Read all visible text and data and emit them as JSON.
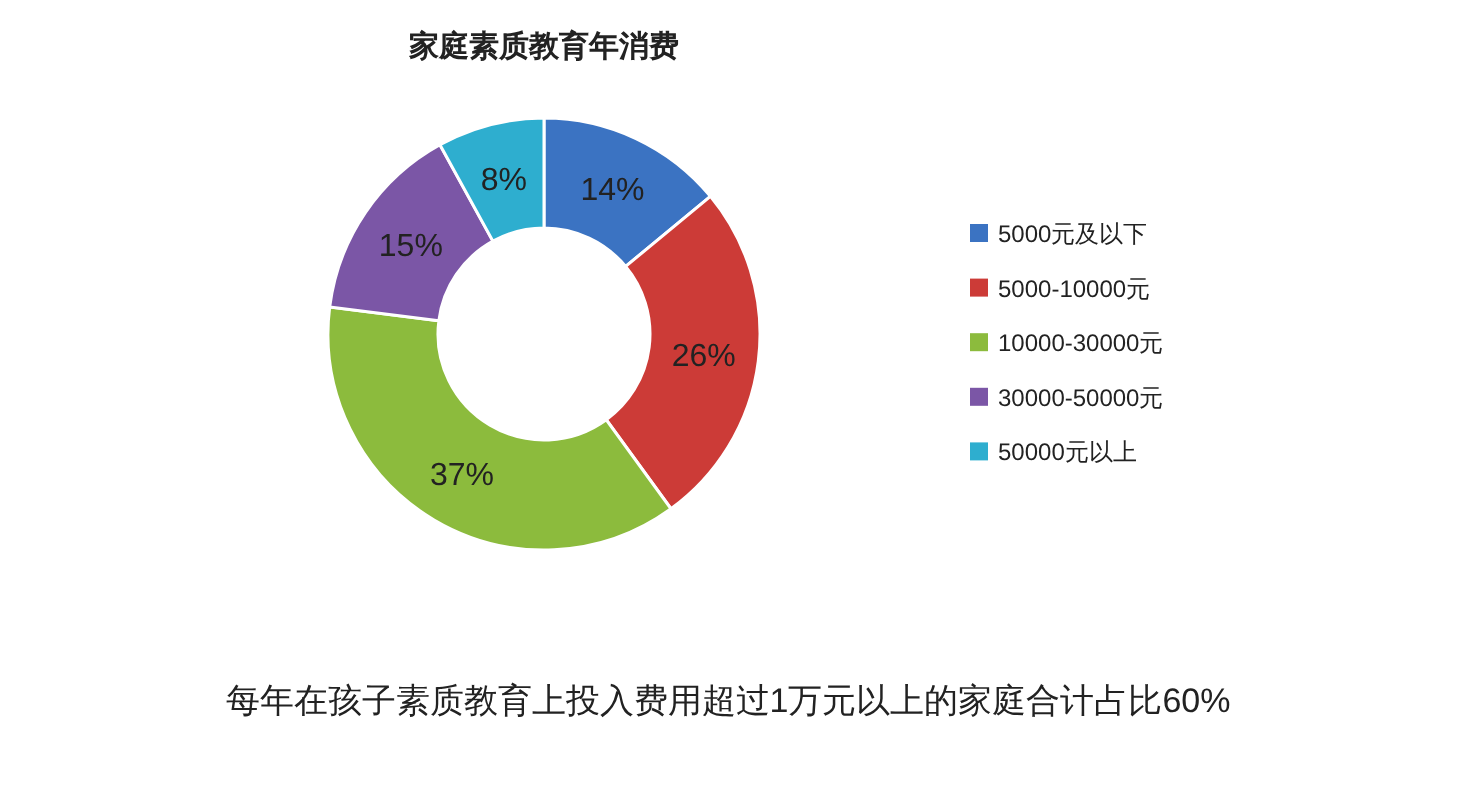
{
  "chart_data": {
    "type": "donut",
    "title": "家庭素质教育年消费",
    "categories": [
      "5000元及以下",
      "5000-10000元",
      "10000-30000元",
      "30000-50000元",
      "50000元以上"
    ],
    "values": [
      14,
      26,
      37,
      15,
      8
    ],
    "value_labels": [
      "14%",
      "26%",
      "37%",
      "15%",
      "8%"
    ],
    "colors": [
      "#3b73c2",
      "#cc3b37",
      "#8cbb3d",
      "#7b56a6",
      "#2eaecf"
    ],
    "legend": "right",
    "annotations": [
      "每年在孩子素质教育上投入费用超过1万元以上的家庭合计占比60%"
    ]
  }
}
